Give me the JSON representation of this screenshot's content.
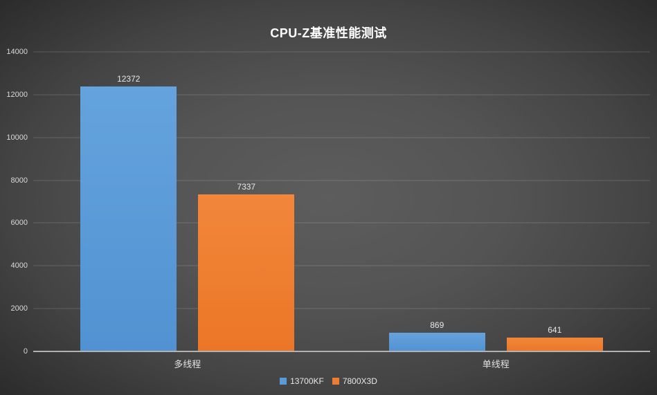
{
  "chart_data": {
    "type": "bar",
    "title": "CPU-Z基准性能测试",
    "categories": [
      "多线程",
      "单线程"
    ],
    "series": [
      {
        "name": "13700KF",
        "color": "#5B9BD5",
        "color_top": "#64A3DD",
        "color_bottom": "#5292D2",
        "values": [
          12372,
          869
        ]
      },
      {
        "name": "7800X3D",
        "color": "#ED7D31",
        "color_top": "#F1873B",
        "color_bottom": "#EC7627",
        "values": [
          7337,
          641
        ]
      }
    ],
    "ylim": [
      0,
      14000
    ],
    "yticks": [
      0,
      2000,
      4000,
      6000,
      8000,
      10000,
      12000,
      14000
    ],
    "grid": true,
    "legend_position": "bottom",
    "colors": {
      "background_center": "#5D5D5D",
      "background_edge": "#2B2B2B",
      "gridline": "#6E6E6E",
      "axis_line": "#B2B2B2",
      "title_text": "#FFFFFF",
      "tick_text": "#D9D9D9",
      "data_label_text": "#E8E8E8"
    }
  }
}
